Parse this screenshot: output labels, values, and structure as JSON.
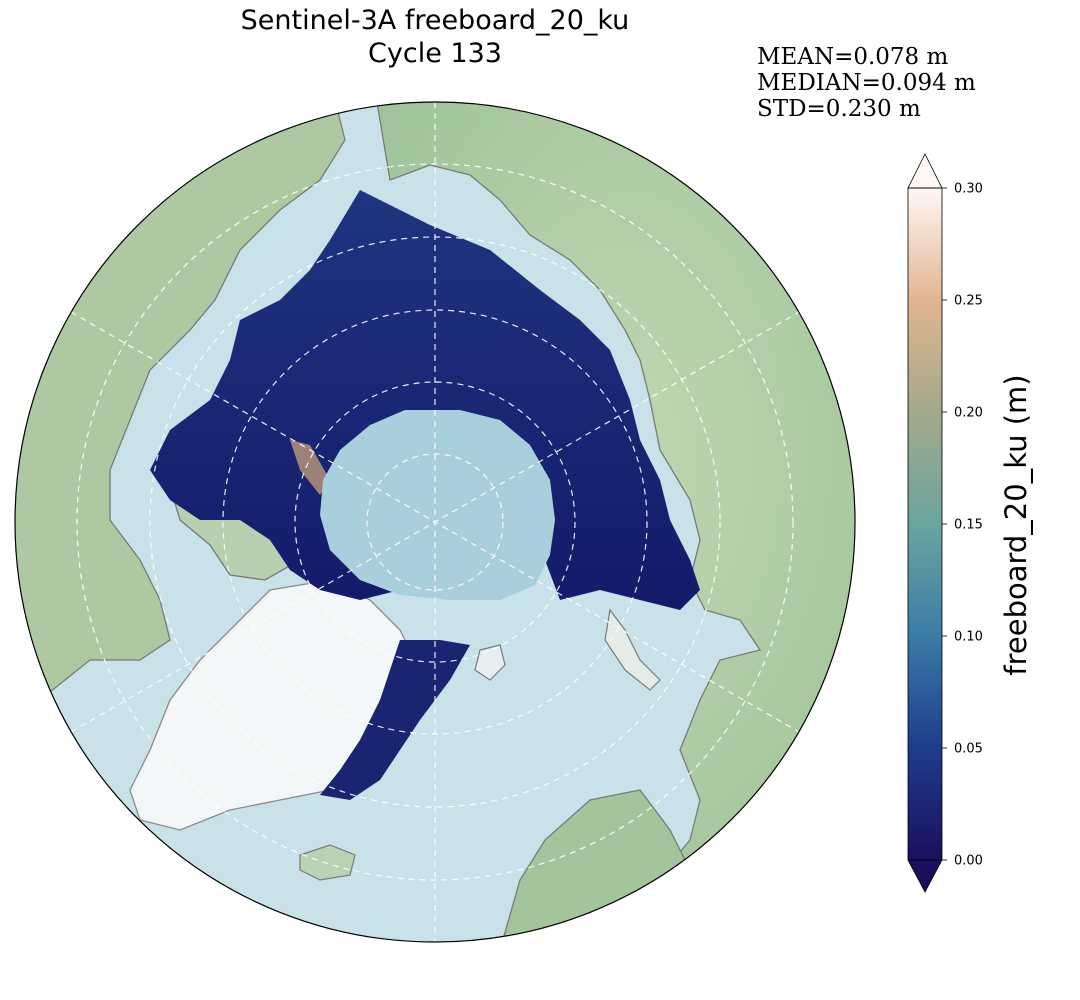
{
  "title": {
    "line1": "Sentinel-3A freeboard_20_ku",
    "line2": "Cycle 133"
  },
  "stats": {
    "mean": "MEAN=0.078 m",
    "median": "MEDIAN=0.094 m",
    "std": "STD=0.230 m"
  },
  "colorbar": {
    "label": "freeboard_20_ku (m)",
    "min": 0.0,
    "max": 0.3,
    "extend": "both",
    "ticks": [
      "0.00",
      "0.05",
      "0.10",
      "0.15",
      "0.20",
      "0.25",
      "0.30"
    ],
    "colormap_stops": [
      "#1a0f5e",
      "#1f3c8c",
      "#3b7ba6",
      "#6aa59f",
      "#a3a98b",
      "#e2b591",
      "#fff7f5"
    ]
  },
  "map": {
    "projection": "north polar stereographic",
    "ocean_color": "#c9e1e8",
    "land_color": "#a9c9a0",
    "ice_sheet_color": "#f7f9fa",
    "pole_hole_color": "#a8d0dd",
    "graticule": "dashed white"
  }
}
